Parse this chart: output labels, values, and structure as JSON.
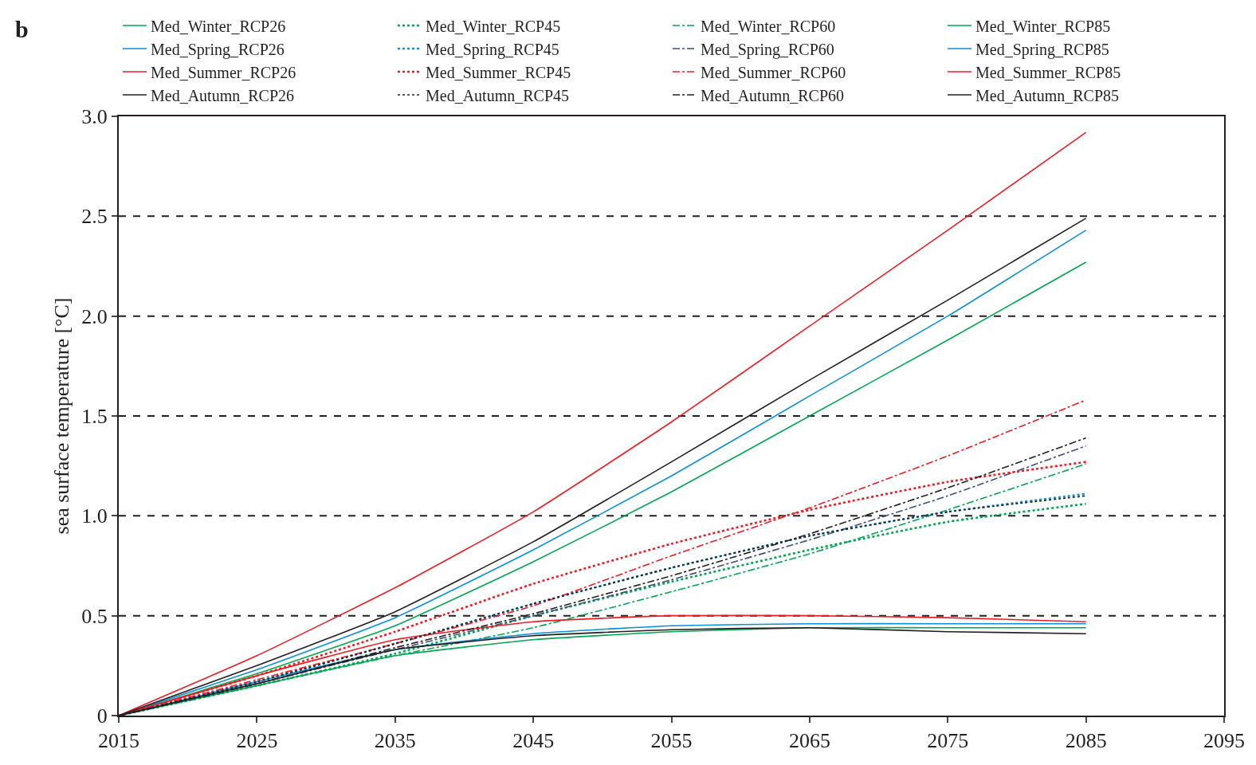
{
  "chart_data": {
    "type": "line",
    "title": "b",
    "ylabel": "sea surface temperature [°C]",
    "x": [
      2015,
      2025,
      2035,
      2045,
      2055,
      2065,
      2075,
      2085
    ],
    "xlim": [
      2015,
      2095
    ],
    "xticks": [
      2015,
      2025,
      2035,
      2045,
      2055,
      2065,
      2075,
      2085,
      2095
    ],
    "ylim": [
      0,
      3.0
    ],
    "yticks": [
      0,
      {
        "value": 0.5,
        "label": "0.5"
      },
      {
        "value": 1.0,
        "label": "1.0"
      },
      {
        "value": 1.5,
        "label": "1.5"
      },
      {
        "value": 2.0,
        "label": "2.0"
      },
      {
        "value": 2.5,
        "label": "2.5"
      },
      {
        "value": 3.0,
        "label": "3.0"
      }
    ],
    "grid": "y",
    "legend": "top",
    "marker": "none",
    "series": [
      {
        "name": "Med_Winter_RCP26",
        "color": "#00a651",
        "line_style": "solid",
        "values": [
          0,
          0.15,
          0.3,
          0.38,
          0.42,
          0.44,
          0.44,
          0.44
        ]
      },
      {
        "name": "Med_Winter_RCP45",
        "color": "#00a651",
        "line_style": "dotted",
        "values": [
          0,
          0.15,
          0.31,
          0.5,
          0.67,
          0.83,
          0.97,
          1.06
        ]
      },
      {
        "name": "Med_Winter_RCP60",
        "color": "#00a651",
        "line_style": "dashdot",
        "values": [
          0,
          0.15,
          0.3,
          0.44,
          0.62,
          0.81,
          1.03,
          1.26
        ]
      },
      {
        "name": "Med_Winter_RCP85",
        "color": "#00a651",
        "line_style": "solid",
        "values": [
          0,
          0.21,
          0.45,
          0.77,
          1.12,
          1.5,
          1.88,
          2.27
        ]
      },
      {
        "name": "Med_Spring_RCP26",
        "color": "#0a8fd8",
        "line_style": "solid",
        "values": [
          0,
          0.17,
          0.33,
          0.41,
          0.45,
          0.46,
          0.46,
          0.46
        ]
      },
      {
        "name": "Med_Spring_RCP45",
        "color": "#0a8fd8",
        "line_style": "dotted",
        "values": [
          0,
          0.17,
          0.36,
          0.56,
          0.74,
          0.9,
          1.02,
          1.11
        ]
      },
      {
        "name": "Med_Spring_RCP60",
        "color": "#3b4f7d",
        "line_style": "dashdot",
        "values": [
          0,
          0.16,
          0.33,
          0.5,
          0.68,
          0.88,
          1.1,
          1.35
        ]
      },
      {
        "name": "Med_Spring_RCP85",
        "color": "#0a8fd8",
        "line_style": "solid",
        "values": [
          0,
          0.23,
          0.49,
          0.83,
          1.2,
          1.6,
          2.0,
          2.43
        ]
      },
      {
        "name": "Med_Summer_RCP26",
        "color": "#ed1c24",
        "line_style": "solid",
        "values": [
          0,
          0.2,
          0.38,
          0.47,
          0.5,
          0.5,
          0.49,
          0.47
        ]
      },
      {
        "name": "Med_Summer_RCP45",
        "color": "#ed1c24",
        "line_style": "dotted",
        "values": [
          0,
          0.2,
          0.42,
          0.66,
          0.86,
          1.03,
          1.17,
          1.27
        ]
      },
      {
        "name": "Med_Summer_RCP60",
        "color": "#ed1c24",
        "line_style": "dashdot",
        "values": [
          0,
          0.18,
          0.36,
          0.55,
          0.8,
          1.04,
          1.3,
          1.58
        ]
      },
      {
        "name": "Med_Summer_RCP85",
        "color": "#ed1c24",
        "line_style": "solid",
        "values": [
          0,
          0.3,
          0.64,
          1.02,
          1.47,
          1.95,
          2.43,
          2.92
        ]
      },
      {
        "name": "Med_Autumn_RCP26",
        "color": "#231f20",
        "line_style": "solid",
        "values": [
          0,
          0.16,
          0.33,
          0.4,
          0.43,
          0.44,
          0.42,
          0.41
        ]
      },
      {
        "name": "Med_Autumn_RCP45",
        "color": "#231f20",
        "line_style": "dotted",
        "values": [
          0,
          0.17,
          0.36,
          0.56,
          0.74,
          0.9,
          1.02,
          1.1
        ]
      },
      {
        "name": "Med_Autumn_RCP60",
        "color": "#231f20",
        "line_style": "dashdot",
        "values": [
          0,
          0.16,
          0.34,
          0.51,
          0.7,
          0.91,
          1.14,
          1.39
        ]
      },
      {
        "name": "Med_Autumn_RCP85",
        "color": "#231f20",
        "line_style": "solid",
        "values": [
          0,
          0.25,
          0.52,
          0.87,
          1.27,
          1.68,
          2.08,
          2.49
        ]
      }
    ]
  }
}
